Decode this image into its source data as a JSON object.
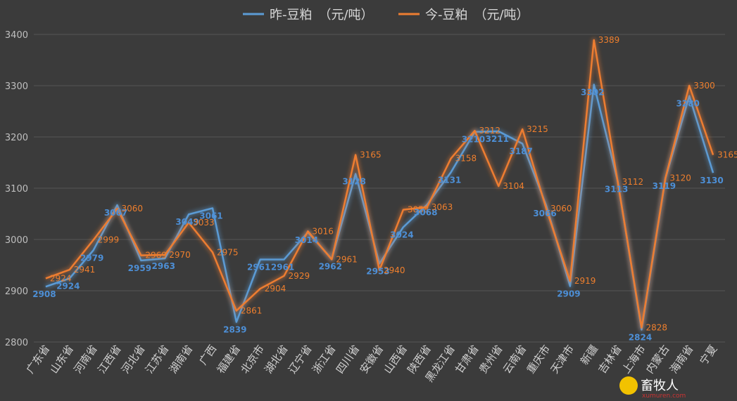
{
  "watermark": {
    "logo_text": "畜牧人",
    "site": "xumuren.com"
  },
  "chart_data": {
    "type": "line",
    "legend_position": "top",
    "grid": true,
    "ylim": [
      2800,
      3400
    ],
    "yticks": [
      2800,
      2900,
      3000,
      3100,
      3200,
      3300,
      3400
    ],
    "categories": [
      "广东省",
      "山东省",
      "河南省",
      "江西省",
      "河北省",
      "江苏省",
      "湖南省",
      "广西",
      "福建省",
      "北京市",
      "湖北省",
      "辽宁省",
      "浙江省",
      "四川省",
      "安徽省",
      "山西省",
      "陕西省",
      "黑龙江省",
      "甘肃省",
      "贵州省",
      "云南省",
      "重庆市",
      "天津市",
      "新疆",
      "吉林省",
      "上海市",
      "内蒙古",
      "海南省",
      "宁夏"
    ],
    "series": [
      {
        "name": "昨-豆粕　（元/吨）",
        "color": "#5b9bd5",
        "values": [
          2908,
          2924,
          2979,
          3067,
          2959,
          2963,
          3049,
          3061,
          2839,
          2961,
          2961,
          3014,
          2962,
          3128,
          2953,
          3024,
          3068,
          3131,
          3210,
          3211,
          3187,
          3066,
          2909,
          3302,
          3113,
          2824,
          3119,
          3280,
          3130
        ]
      },
      {
        "name": "今-豆粕　（元/吨）",
        "color": "#ed7d31",
        "values": [
          2924,
          2941,
          2999,
          3060,
          2969,
          2970,
          3033,
          2975,
          2861,
          2904,
          2929,
          3016,
          2961,
          3165,
          2940,
          3058,
          3063,
          3158,
          3212,
          3104,
          3215,
          3060,
          2919,
          3389,
          3112,
          2828,
          3120,
          3300,
          3165
        ]
      }
    ]
  }
}
